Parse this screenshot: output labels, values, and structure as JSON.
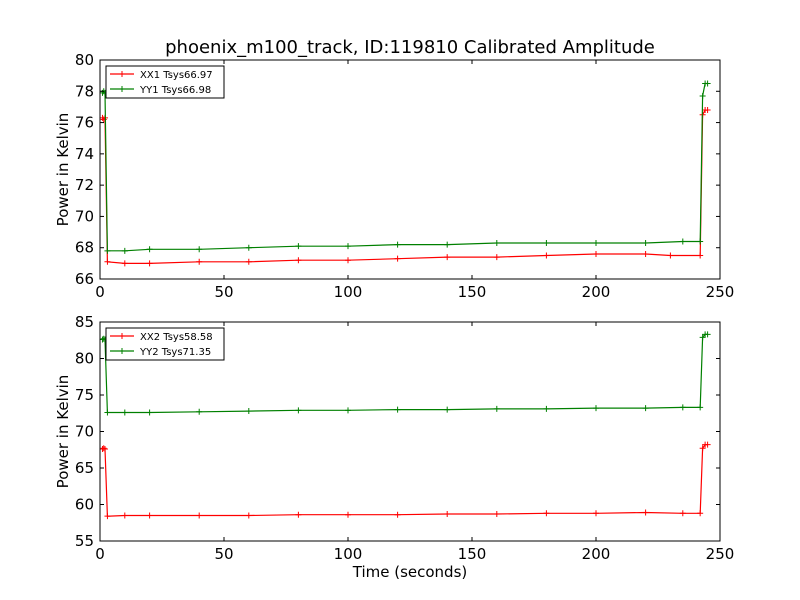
{
  "figure": {
    "title": "phoenix_m100_track, ID:119810 Calibrated Amplitude"
  },
  "chart_data": [
    {
      "type": "line",
      "title": "phoenix_m100_track, ID:119810 Calibrated Amplitude",
      "xlabel": "",
      "ylabel": "Power in Kelvin",
      "xlim": [
        0,
        250
      ],
      "ylim": [
        66,
        80
      ],
      "xticks": [
        0,
        50,
        100,
        150,
        200,
        250
      ],
      "yticks": [
        66,
        68,
        70,
        72,
        74,
        76,
        78,
        80
      ],
      "grid": false,
      "legend_position": "top-left",
      "series": [
        {
          "name": "XX1 Tsys66.97",
          "color": "#ff0000",
          "points": [
            [
              1,
              76.3
            ],
            [
              1.5,
              76.2
            ],
            [
              2,
              76.3
            ],
            [
              3,
              67.1
            ],
            [
              10,
              67.0
            ],
            [
              20,
              67.0
            ],
            [
              40,
              67.1
            ],
            [
              60,
              67.1
            ],
            [
              80,
              67.2
            ],
            [
              100,
              67.2
            ],
            [
              120,
              67.3
            ],
            [
              140,
              67.4
            ],
            [
              160,
              67.4
            ],
            [
              180,
              67.5
            ],
            [
              200,
              67.6
            ],
            [
              220,
              67.6
            ],
            [
              230,
              67.5
            ],
            [
              242,
              67.5
            ],
            [
              243,
              76.5
            ],
            [
              244,
              76.8
            ],
            [
              245,
              76.8
            ]
          ]
        },
        {
          "name": "YY1 Tsys66.98",
          "color": "#008000",
          "points": [
            [
              1,
              77.9
            ],
            [
              1.5,
              78.0
            ],
            [
              2,
              77.9
            ],
            [
              3,
              67.8
            ],
            [
              10,
              67.8
            ],
            [
              20,
              67.9
            ],
            [
              40,
              67.9
            ],
            [
              60,
              68.0
            ],
            [
              80,
              68.1
            ],
            [
              100,
              68.1
            ],
            [
              120,
              68.2
            ],
            [
              140,
              68.2
            ],
            [
              160,
              68.3
            ],
            [
              180,
              68.3
            ],
            [
              200,
              68.3
            ],
            [
              220,
              68.3
            ],
            [
              235,
              68.4
            ],
            [
              242,
              68.4
            ],
            [
              243,
              77.7
            ],
            [
              244,
              78.5
            ],
            [
              245,
              78.5
            ]
          ]
        }
      ]
    },
    {
      "type": "line",
      "title": "",
      "xlabel": "Time (seconds)",
      "ylabel": "Power in Kelvin",
      "xlim": [
        0,
        250
      ],
      "ylim": [
        55,
        85
      ],
      "xticks": [
        0,
        50,
        100,
        150,
        200,
        250
      ],
      "yticks": [
        55,
        60,
        65,
        70,
        75,
        80,
        85
      ],
      "grid": false,
      "legend_position": "top-left",
      "series": [
        {
          "name": "XX2 Tsys58.58",
          "color": "#ff0000",
          "points": [
            [
              1,
              67.6
            ],
            [
              1.5,
              67.7
            ],
            [
              2,
              67.6
            ],
            [
              3,
              58.4
            ],
            [
              10,
              58.5
            ],
            [
              20,
              58.5
            ],
            [
              40,
              58.5
            ],
            [
              60,
              58.5
            ],
            [
              80,
              58.6
            ],
            [
              100,
              58.6
            ],
            [
              120,
              58.6
            ],
            [
              140,
              58.7
            ],
            [
              160,
              58.7
            ],
            [
              180,
              58.8
            ],
            [
              200,
              58.8
            ],
            [
              220,
              58.9
            ],
            [
              235,
              58.8
            ],
            [
              242,
              58.8
            ],
            [
              243,
              67.7
            ],
            [
              244,
              68.2
            ],
            [
              245,
              68.2
            ]
          ]
        },
        {
          "name": "YY2 Tsys71.35",
          "color": "#008000",
          "points": [
            [
              1,
              82.6
            ],
            [
              1.5,
              82.7
            ],
            [
              2,
              82.6
            ],
            [
              3,
              72.6
            ],
            [
              10,
              72.6
            ],
            [
              20,
              72.6
            ],
            [
              40,
              72.7
            ],
            [
              60,
              72.8
            ],
            [
              80,
              72.9
            ],
            [
              100,
              72.9
            ],
            [
              120,
              73.0
            ],
            [
              140,
              73.0
            ],
            [
              160,
              73.1
            ],
            [
              180,
              73.1
            ],
            [
              200,
              73.2
            ],
            [
              220,
              73.2
            ],
            [
              235,
              73.3
            ],
            [
              242,
              73.3
            ],
            [
              243,
              82.9
            ],
            [
              244,
              83.3
            ],
            [
              245,
              83.3
            ]
          ]
        }
      ]
    }
  ]
}
